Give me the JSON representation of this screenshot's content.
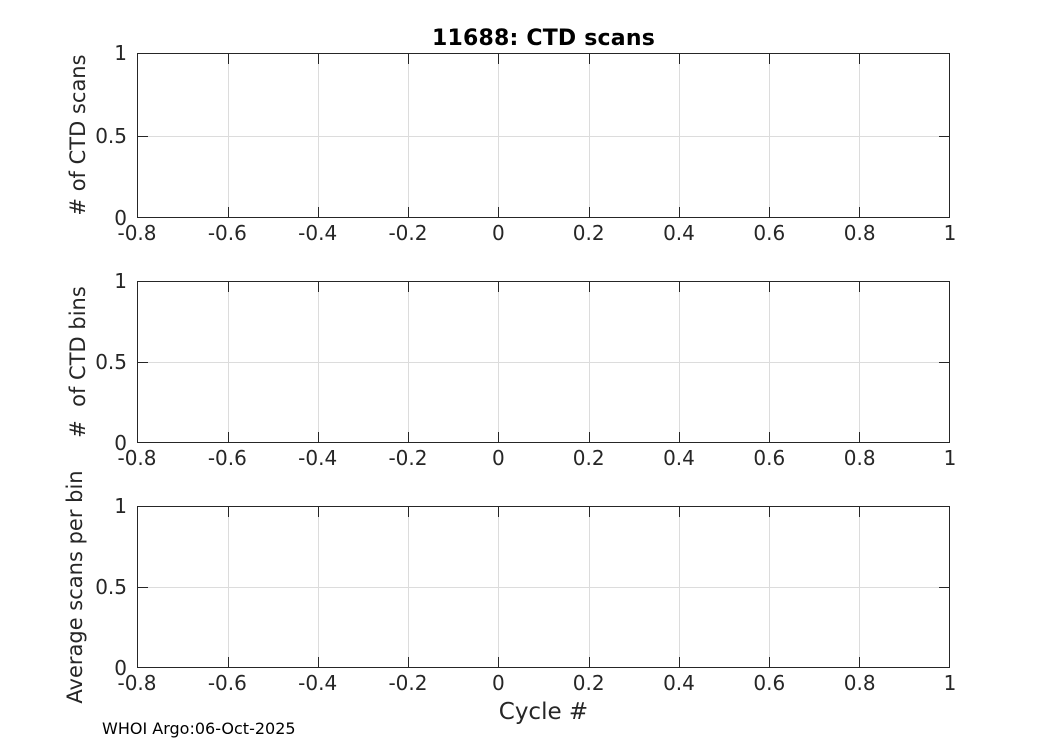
{
  "figure": {
    "title": "11688: CTD scans",
    "xlabel": "Cycle #",
    "footer": "WHOI Argo:06-Oct-2025"
  },
  "chart_data": {
    "type": "line",
    "title": "11688: CTD scans",
    "xlabel": "Cycle #",
    "grid": true,
    "xlim": [
      -0.8,
      1
    ],
    "ylim": [
      0,
      1
    ],
    "x_ticks": [
      -0.8,
      -0.6,
      -0.4,
      -0.2,
      0,
      0.2,
      0.4,
      0.6,
      0.8,
      1
    ],
    "x_tick_labels": [
      "-0.8",
      "-0.6",
      "-0.4",
      "-0.2",
      "0",
      "0.2",
      "0.4",
      "0.6",
      "0.8",
      "1"
    ],
    "y_ticks": [
      0,
      0.5,
      1
    ],
    "y_tick_labels": [
      "0",
      "0.5",
      "1"
    ],
    "subplots": [
      {
        "ylabel": "# of CTD scans",
        "series": []
      },
      {
        "ylabel": "#  of CTD bins",
        "series": []
      },
      {
        "ylabel": "Average scans per bin",
        "series": []
      }
    ]
  },
  "colors": {
    "axis": "#262626",
    "grid": "#dcdcdc",
    "background": "#ffffff",
    "title_text": "#000000"
  }
}
